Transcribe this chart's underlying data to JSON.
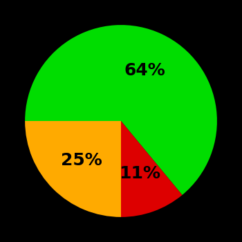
{
  "slices": [
    64,
    11,
    25
  ],
  "colors": [
    "#00dd00",
    "#dd0000",
    "#ffaa00"
  ],
  "labels": [
    "64%",
    "11%",
    "25%"
  ],
  "background_color": "#000000",
  "text_color": "#000000",
  "label_fontsize": 18,
  "label_fontweight": "bold",
  "startangle": 180,
  "figsize": [
    3.5,
    3.5
  ],
  "dpi": 100
}
